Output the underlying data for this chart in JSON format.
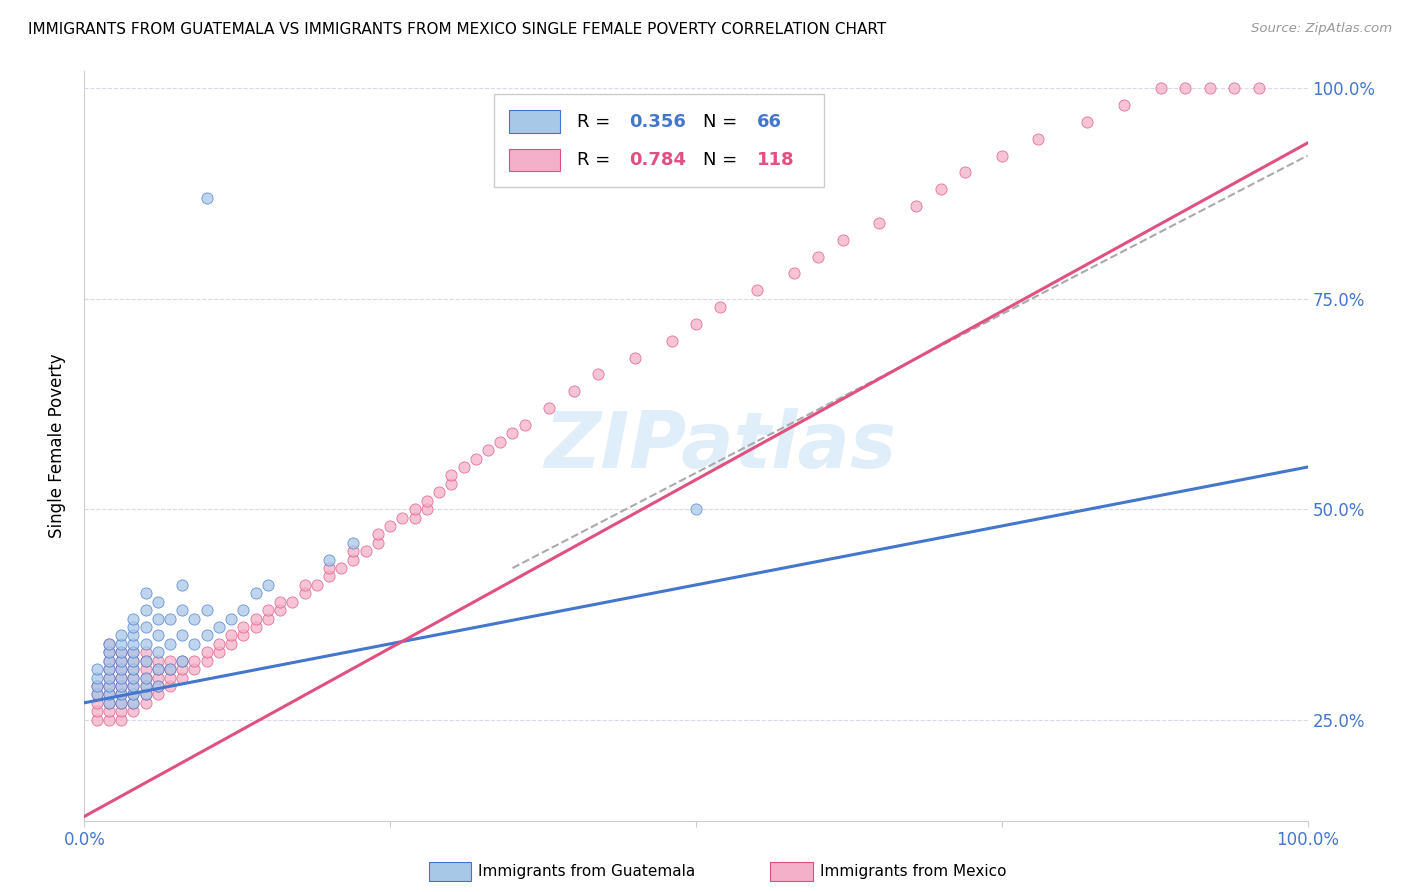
{
  "title": "IMMIGRANTS FROM GUATEMALA VS IMMIGRANTS FROM MEXICO SINGLE FEMALE POVERTY CORRELATION CHART",
  "source": "Source: ZipAtlas.com",
  "ylabel": "Single Female Poverty",
  "xlim": [
    0,
    1.0
  ],
  "ylim": [
    0.13,
    1.02
  ],
  "color_blue": "#a8c8e8",
  "color_pink": "#f4b0c8",
  "color_blue_line": "#4477cc",
  "color_pink_line": "#e05080",
  "color_blue_text": "#4477cc",
  "color_pink_text": "#e05080",
  "R_blue": 0.356,
  "N_blue": 66,
  "R_pink": 0.784,
  "N_pink": 118,
  "legend_label_blue": "Immigrants from Guatemala",
  "legend_label_pink": "Immigrants from Mexico",
  "watermark": "ZIPatlas",
  "blue_line": [
    0.0,
    0.27,
    1.0,
    0.55
  ],
  "pink_line": [
    0.0,
    0.135,
    1.0,
    0.935
  ],
  "gray_line": [
    0.35,
    0.43,
    1.0,
    0.92
  ],
  "blue_x": [
    0.01,
    0.01,
    0.01,
    0.01,
    0.02,
    0.02,
    0.02,
    0.02,
    0.02,
    0.02,
    0.02,
    0.02,
    0.03,
    0.03,
    0.03,
    0.03,
    0.03,
    0.03,
    0.03,
    0.03,
    0.03,
    0.04,
    0.04,
    0.04,
    0.04,
    0.04,
    0.04,
    0.04,
    0.04,
    0.04,
    0.04,
    0.04,
    0.05,
    0.05,
    0.05,
    0.05,
    0.05,
    0.05,
    0.05,
    0.05,
    0.06,
    0.06,
    0.06,
    0.06,
    0.06,
    0.06,
    0.07,
    0.07,
    0.07,
    0.08,
    0.08,
    0.08,
    0.08,
    0.09,
    0.09,
    0.1,
    0.1,
    0.11,
    0.12,
    0.13,
    0.14,
    0.15,
    0.2,
    0.22,
    0.5,
    0.1
  ],
  "blue_y": [
    0.28,
    0.29,
    0.3,
    0.31,
    0.27,
    0.28,
    0.29,
    0.3,
    0.31,
    0.32,
    0.33,
    0.34,
    0.27,
    0.28,
    0.29,
    0.3,
    0.31,
    0.32,
    0.33,
    0.34,
    0.35,
    0.27,
    0.28,
    0.29,
    0.3,
    0.31,
    0.32,
    0.33,
    0.34,
    0.35,
    0.36,
    0.37,
    0.28,
    0.29,
    0.3,
    0.32,
    0.34,
    0.36,
    0.38,
    0.4,
    0.29,
    0.31,
    0.33,
    0.35,
    0.37,
    0.39,
    0.31,
    0.34,
    0.37,
    0.32,
    0.35,
    0.38,
    0.41,
    0.34,
    0.37,
    0.35,
    0.38,
    0.36,
    0.37,
    0.38,
    0.4,
    0.41,
    0.44,
    0.46,
    0.5,
    0.87
  ],
  "pink_x": [
    0.01,
    0.01,
    0.01,
    0.01,
    0.01,
    0.02,
    0.02,
    0.02,
    0.02,
    0.02,
    0.02,
    0.02,
    0.02,
    0.02,
    0.02,
    0.03,
    0.03,
    0.03,
    0.03,
    0.03,
    0.03,
    0.03,
    0.03,
    0.03,
    0.04,
    0.04,
    0.04,
    0.04,
    0.04,
    0.04,
    0.04,
    0.04,
    0.05,
    0.05,
    0.05,
    0.05,
    0.05,
    0.05,
    0.05,
    0.06,
    0.06,
    0.06,
    0.06,
    0.06,
    0.07,
    0.07,
    0.07,
    0.07,
    0.08,
    0.08,
    0.08,
    0.09,
    0.09,
    0.1,
    0.1,
    0.11,
    0.11,
    0.12,
    0.12,
    0.13,
    0.13,
    0.14,
    0.14,
    0.15,
    0.15,
    0.16,
    0.16,
    0.17,
    0.18,
    0.18,
    0.19,
    0.2,
    0.2,
    0.21,
    0.22,
    0.22,
    0.23,
    0.24,
    0.24,
    0.25,
    0.26,
    0.27,
    0.27,
    0.28,
    0.28,
    0.29,
    0.3,
    0.3,
    0.31,
    0.32,
    0.33,
    0.34,
    0.35,
    0.36,
    0.38,
    0.4,
    0.42,
    0.45,
    0.48,
    0.5,
    0.52,
    0.55,
    0.58,
    0.6,
    0.62,
    0.65,
    0.68,
    0.7,
    0.72,
    0.75,
    0.78,
    0.82,
    0.85,
    0.88,
    0.9,
    0.92,
    0.94,
    0.96
  ],
  "pink_y": [
    0.25,
    0.26,
    0.27,
    0.28,
    0.29,
    0.25,
    0.26,
    0.27,
    0.28,
    0.29,
    0.3,
    0.31,
    0.32,
    0.33,
    0.34,
    0.25,
    0.26,
    0.27,
    0.28,
    0.29,
    0.3,
    0.31,
    0.32,
    0.33,
    0.26,
    0.27,
    0.28,
    0.29,
    0.3,
    0.31,
    0.32,
    0.33,
    0.27,
    0.28,
    0.29,
    0.3,
    0.31,
    0.32,
    0.33,
    0.28,
    0.29,
    0.3,
    0.31,
    0.32,
    0.29,
    0.3,
    0.31,
    0.32,
    0.3,
    0.31,
    0.32,
    0.31,
    0.32,
    0.32,
    0.33,
    0.33,
    0.34,
    0.34,
    0.35,
    0.35,
    0.36,
    0.36,
    0.37,
    0.37,
    0.38,
    0.38,
    0.39,
    0.39,
    0.4,
    0.41,
    0.41,
    0.42,
    0.43,
    0.43,
    0.44,
    0.45,
    0.45,
    0.46,
    0.47,
    0.48,
    0.49,
    0.49,
    0.5,
    0.5,
    0.51,
    0.52,
    0.53,
    0.54,
    0.55,
    0.56,
    0.57,
    0.58,
    0.59,
    0.6,
    0.62,
    0.64,
    0.66,
    0.68,
    0.7,
    0.72,
    0.74,
    0.76,
    0.78,
    0.8,
    0.82,
    0.84,
    0.86,
    0.88,
    0.9,
    0.92,
    0.94,
    0.96,
    0.98,
    1.0,
    1.0,
    1.0,
    1.0,
    1.0
  ]
}
